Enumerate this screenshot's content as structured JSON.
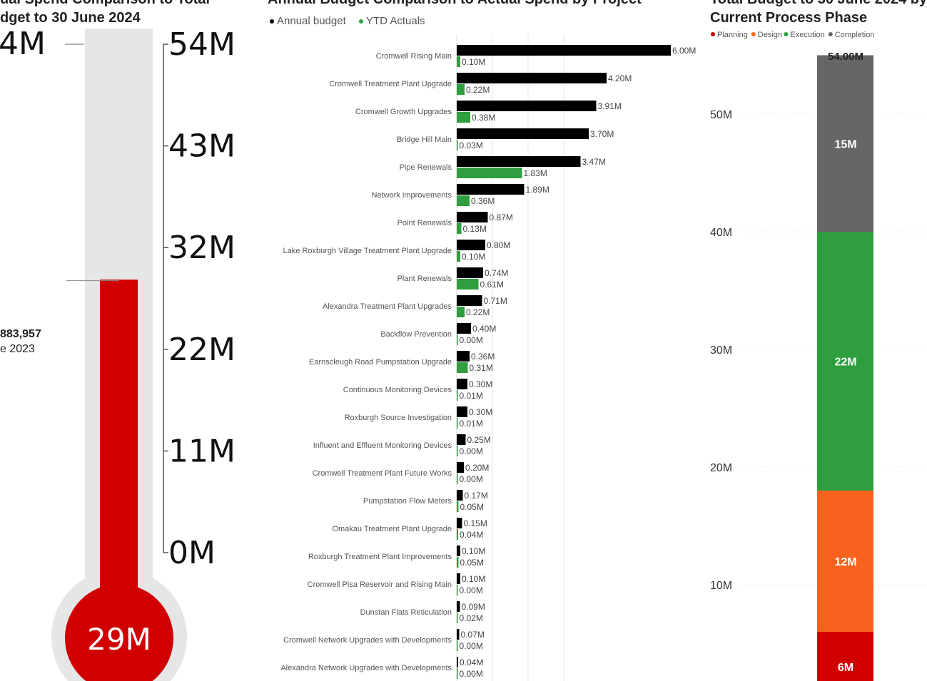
{
  "chart_data": [
    {
      "type": "gauge",
      "title": [
        "ual Spend Comparison to Total",
        "dget to 30 June 2024"
      ],
      "target_label": "4M",
      "scale_ticks": [
        "54M",
        "43M",
        "32M",
        "22M",
        "11M",
        "0M"
      ],
      "scale_min": 0,
      "scale_max": 54,
      "value": 29,
      "value_label": "29M",
      "annotation": {
        "value": "883,957",
        "label": "e 2023",
        "at": 28.88
      },
      "colors": {
        "fill": "#D10000",
        "track": "#E6E6E6"
      }
    },
    {
      "type": "bar",
      "orientation": "horizontal",
      "title": "Annual Budget Comparison to Actual Spend by Project",
      "xlim": [
        0,
        6
      ],
      "legend": {
        "position": "top-left"
      },
      "categories": [
        "Cromwell Rising Main",
        "Cromwell Treatment Plant Upgrade",
        "Cromwell Growth Upgrades",
        "Bridge Hill Main",
        "Pipe Renewals",
        "Network improvements",
        "Point Renewals",
        "Lake Roxburgh Village Treatment Plant Upgrade",
        "Plant Renewals",
        "Alexandra Treatment Plant Upgrades",
        "Backflow Prevention",
        "Earnscleugh Road Pumpstation Upgrade",
        "Continuous Monitoring Devices",
        "Roxburgh Source Investigation",
        "Influent and Effluent Monitoring Devices",
        "Cromwell Treatment Plant Future Works",
        "Pumpstation Flow Meters",
        "Omakau Treatment Plant Upgrade",
        "Roxburgh Treatment Plant Improvements",
        "Cromwell Pisa Reservoir and Rising Main",
        "Dunstan Flats Reticulation",
        "Cromwell Network Upgrades with Developments",
        "Alexandra Network Upgrades with Developments"
      ],
      "series": [
        {
          "name": "Annual budget",
          "color": "#000000",
          "values": [
            6.0,
            4.2,
            3.91,
            3.7,
            3.47,
            1.89,
            0.87,
            0.8,
            0.74,
            0.71,
            0.4,
            0.36,
            0.3,
            0.3,
            0.25,
            0.2,
            0.17,
            0.15,
            0.1,
            0.1,
            0.09,
            0.07,
            0.04
          ],
          "labels": [
            "6.00M",
            "4.20M",
            "3.91M",
            "3.70M",
            "3.47M",
            "1.89M",
            "0.87M",
            "0.80M",
            "0.74M",
            "0.71M",
            "0.40M",
            "0.36M",
            "0.30M",
            "0.30M",
            "0.25M",
            "0.20M",
            "0.17M",
            "0.15M",
            "0.10M",
            "0.10M",
            "0.09M",
            "0.07M",
            "0.04M"
          ]
        },
        {
          "name": "YTD Actuals",
          "color": "#2E9E3E",
          "values": [
            0.1,
            0.22,
            0.38,
            0.03,
            1.83,
            0.36,
            0.13,
            0.1,
            0.61,
            0.22,
            0.0,
            0.31,
            0.01,
            0.01,
            0.0,
            0.0,
            0.05,
            0.04,
            0.05,
            0.0,
            0.02,
            0.0,
            0.0
          ],
          "labels": [
            "0.10M",
            "0.22M",
            "0.38M",
            "0.03M",
            "1.83M",
            "0.36M",
            "0.13M",
            "0.10M",
            "0.61M",
            "0.22M",
            "0.00M",
            "0.31M",
            "0.01M",
            "0.01M",
            "0.00M",
            "0.00M",
            "0.05M",
            "0.04M",
            "0.05M",
            "0.00M",
            "0.02M",
            "0.00M",
            "0.00M"
          ]
        }
      ]
    },
    {
      "type": "stacked-bar",
      "title": [
        "Total Budget to 30 June 2024 by",
        "Current Process Phase"
      ],
      "total_label": "54.00M",
      "ylim": [
        0,
        54
      ],
      "yticks": [
        10,
        20,
        30,
        40,
        50
      ],
      "ytick_labels": [
        "10M",
        "20M",
        "30M",
        "40M",
        "50M"
      ],
      "legend": {
        "position": "top-left"
      },
      "series": [
        {
          "name": "Planning",
          "color": "#D10000",
          "value": 6,
          "label": "6M"
        },
        {
          "name": "Design",
          "color": "#F7621E",
          "value": 12,
          "label": "12M"
        },
        {
          "name": "Execution",
          "color": "#2E9E3E",
          "value": 22,
          "label": "22M"
        },
        {
          "name": "Completion",
          "color": "#666666",
          "value": 15,
          "label": "15M"
        }
      ]
    }
  ]
}
